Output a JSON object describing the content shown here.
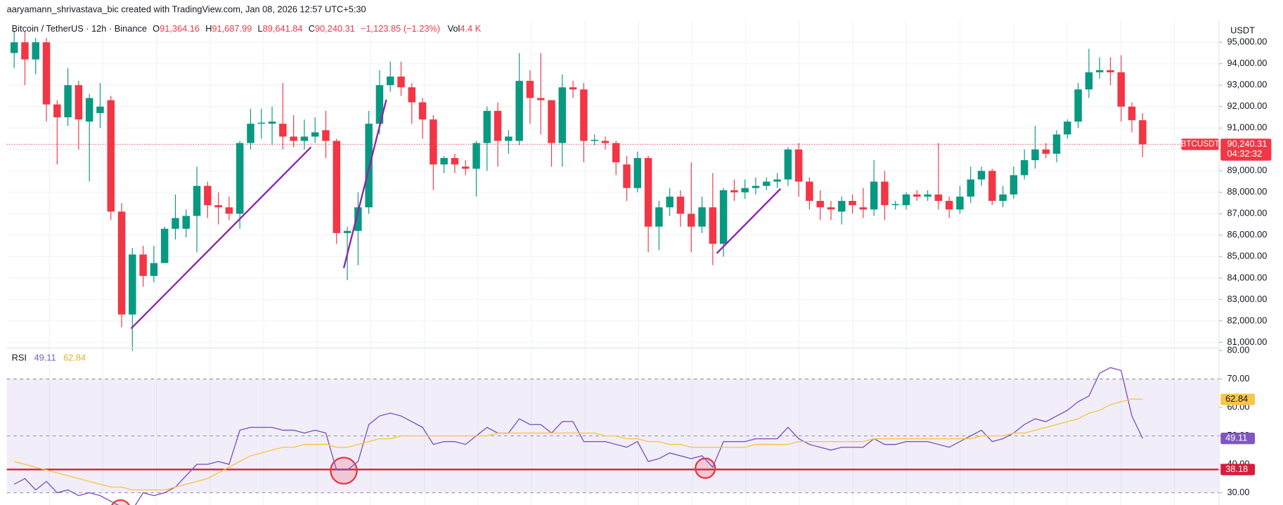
{
  "chart_data": [
    {
      "type": "candlestick",
      "watermark": "aaryamann_shrivastava_bic created with TradingView.com, Jan 08, 2026 12:57 UTC+5:30",
      "symbol": "Bitcoin / TetherUS · 12h · Binance",
      "ohlc_labels": [
        "O",
        "H",
        "L",
        "C"
      ],
      "ohlc_values": [
        "91,364.16",
        "91,687.99",
        "89,641.84",
        "90,240.31"
      ],
      "change": "−1,123.85 (−1.23%)",
      "volume_label": "Vol",
      "volume": "4.4 K",
      "y_label": "USDT",
      "ticker": "BTCUSDT",
      "countdown": "04:32:32",
      "last_price": {
        "value": 90240.31,
        "label": "90,240.31"
      },
      "up_color": "#089981",
      "down_color": "#f23645",
      "open": [
        94500,
        95000,
        94200,
        95000,
        92100,
        91500,
        93000,
        91300,
        91700,
        92300,
        87100,
        82300,
        85100,
        84100,
        84700,
        86300,
        86300,
        86900,
        88300,
        87400,
        87300,
        87000,
        90300,
        91200,
        91200,
        91200,
        90600,
        90400,
        90600,
        90900,
        90400,
        86100,
        86200,
        87300,
        91200,
        93000,
        93400,
        92900,
        92200,
        91400,
        89300,
        89600,
        89200,
        89100,
        90300,
        91800,
        90400,
        90400,
        93200,
        92400,
        92300,
        90300,
        92900,
        92800,
        90400,
        90400,
        90300,
        89300,
        88200,
        89600,
        86400,
        87300,
        87800,
        87000,
        86400,
        87300,
        85600,
        88100,
        88000,
        88200,
        88300,
        88500,
        88600,
        90000,
        88500,
        87600,
        87300,
        87100,
        87600,
        87300,
        87200,
        88500,
        87400,
        87400,
        87900,
        87800,
        87900,
        87600,
        87200,
        87800,
        88600,
        89000,
        87600,
        87900,
        88800,
        89500,
        90000,
        89800,
        90700,
        91300,
        92800,
        93600,
        93700,
        93600,
        92000,
        91364.16
      ],
      "high": [
        95500,
        95500,
        95200,
        95200,
        92300,
        93800,
        93200,
        92600,
        93100,
        92500,
        87500,
        85400,
        85500,
        85500,
        86400,
        87900,
        87200,
        89200,
        88500,
        88000,
        87800,
        90400,
        91900,
        91900,
        92000,
        93100,
        91600,
        91400,
        91500,
        91800,
        90500,
        86400,
        88000,
        91800,
        93700,
        94100,
        94100,
        93100,
        92400,
        91600,
        89700,
        89800,
        89500,
        90400,
        92000,
        92200,
        90900,
        94500,
        93700,
        94500,
        92300,
        93500,
        93200,
        93100,
        90700,
        90600,
        90400,
        89700,
        89900,
        89700,
        87600,
        88200,
        88100,
        89400,
        87800,
        88900,
        88200,
        88600,
        88600,
        88700,
        88700,
        88900,
        90100,
        90300,
        88700,
        88100,
        87600,
        87800,
        87900,
        88200,
        89500,
        89000,
        87600,
        88000,
        88100,
        88100,
        90300,
        87800,
        88300,
        89200,
        89200,
        89100,
        88300,
        89200,
        90000,
        91100,
        90300,
        90900,
        91400,
        93100,
        94700,
        94300,
        94300,
        94400,
        92200,
        91687.99
      ],
      "low": [
        93800,
        93000,
        93500,
        91300,
        89300,
        91100,
        90000,
        88500,
        91000,
        86700,
        81700,
        80600,
        83600,
        83800,
        84700,
        85800,
        85900,
        85200,
        86800,
        86500,
        86700,
        86300,
        90000,
        90500,
        90200,
        90000,
        90100,
        90000,
        90300,
        89600,
        85600,
        83900,
        84600,
        87000,
        90700,
        92700,
        92500,
        91200,
        90500,
        88100,
        88900,
        88900,
        88800,
        87800,
        89000,
        89200,
        89800,
        90200,
        91200,
        90700,
        89200,
        89200,
        92400,
        89400,
        90200,
        90000,
        88800,
        87600,
        88000,
        85200,
        85300,
        86900,
        86400,
        85200,
        86100,
        84600,
        85000,
        87600,
        87700,
        87900,
        88100,
        88200,
        88300,
        87800,
        87200,
        86700,
        86700,
        86500,
        87000,
        86800,
        86900,
        86700,
        87200,
        87200,
        87600,
        87600,
        87200,
        86800,
        87000,
        87500,
        88300,
        87400,
        87300,
        87700,
        88600,
        89100,
        89600,
        89400,
        90500,
        91000,
        92400,
        93300,
        93000,
        91300,
        90800,
        89641.84
      ],
      "close": [
        95000,
        94200,
        95000,
        92100,
        91500,
        93000,
        91400,
        92400,
        92000,
        87100,
        82300,
        85100,
        84100,
        84700,
        86300,
        86800,
        86900,
        88300,
        87400,
        87300,
        87000,
        90300,
        91200,
        91250,
        91300,
        90600,
        90400,
        90600,
        90800,
        90400,
        86100,
        86200,
        87300,
        91200,
        93000,
        93400,
        92900,
        92200,
        91400,
        89300,
        89600,
        89300,
        89100,
        90300,
        91800,
        90400,
        90600,
        93200,
        92400,
        92300,
        90300,
        92900,
        92800,
        90400,
        90450,
        90300,
        89400,
        88200,
        89600,
        86400,
        87300,
        87800,
        87000,
        86400,
        87300,
        85600,
        88100,
        88000,
        88200,
        88300,
        88500,
        88600,
        90000,
        88500,
        87600,
        87300,
        87200,
        87600,
        87400,
        87200,
        88500,
        87400,
        87450,
        87900,
        87800,
        87900,
        87600,
        87200,
        87800,
        88600,
        89000,
        87600,
        87900,
        88800,
        89500,
        90000,
        89800,
        90700,
        91300,
        92800,
        93600,
        93700,
        93600,
        92000,
        91364.16,
        90240.31
      ],
      "ylim": [
        80770,
        96020
      ],
      "yticks": [
        {
          "value": 81000,
          "label": "81,000.00"
        },
        {
          "value": 82000,
          "label": "82,000.00"
        },
        {
          "value": 83000,
          "label": "83,000.00"
        },
        {
          "value": 84000,
          "label": "84,000.00"
        },
        {
          "value": 85000,
          "label": "85,000.00"
        },
        {
          "value": 86000,
          "label": "86,000.00"
        },
        {
          "value": 87000,
          "label": "87,000.00"
        },
        {
          "value": 88000,
          "label": "88,000.00"
        },
        {
          "value": 89000,
          "label": "89,000.00"
        },
        {
          "value": 90000,
          "label": "90,000.00"
        },
        {
          "value": 91000,
          "label": "91,000.00"
        },
        {
          "value": 92000,
          "label": "92,000.00"
        },
        {
          "value": 93000,
          "label": "93,000.00"
        },
        {
          "value": 94000,
          "label": "94,000.00"
        },
        {
          "value": 95000,
          "label": "95,000.00"
        }
      ],
      "grid": true
    },
    {
      "type": "line",
      "title": "RSI",
      "series": [
        {
          "name": "RSI",
          "color": "#7e57c2",
          "values": [
            33,
            35,
            31,
            34,
            30,
            31,
            29,
            30,
            29,
            27,
            25,
            24,
            30,
            29,
            30,
            32,
            36,
            40,
            40,
            41,
            40,
            52,
            53,
            53,
            53,
            52,
            52,
            51,
            52,
            51,
            38,
            38,
            41,
            54,
            57,
            58,
            57,
            55,
            53,
            47,
            48,
            48,
            47,
            50,
            53,
            51,
            51,
            56,
            54,
            54,
            51,
            55,
            55,
            48,
            48,
            48,
            47,
            46,
            48,
            41,
            42,
            44,
            43,
            42,
            43,
            39,
            48,
            48,
            48,
            49,
            49,
            49,
            53,
            49,
            47,
            46,
            45,
            46,
            46,
            46,
            49,
            47,
            47,
            48,
            48,
            48,
            47,
            46,
            48,
            50,
            52,
            48,
            49,
            51,
            54,
            56,
            55,
            57,
            59,
            62,
            64,
            72,
            74,
            73,
            57,
            49.11
          ]
        },
        {
          "name": "RSI MA",
          "color": "#f7c548",
          "values": [
            41,
            40,
            39,
            38,
            37,
            36,
            35,
            34,
            33,
            32,
            32,
            31,
            31,
            31,
            31,
            32,
            33,
            34,
            35,
            37,
            39,
            41,
            43,
            44,
            45,
            46,
            46,
            47,
            47,
            47,
            46,
            46,
            47,
            48,
            49,
            49,
            50,
            50,
            50,
            50,
            50,
            50,
            50,
            50,
            50,
            51,
            51,
            51,
            51,
            51,
            51,
            51,
            51,
            51,
            51,
            50,
            50,
            49,
            49,
            48,
            48,
            47,
            47,
            46,
            46,
            46,
            46,
            46,
            46,
            47,
            47,
            47,
            47,
            48,
            48,
            48,
            48,
            48,
            48,
            48,
            49,
            49,
            49,
            49,
            49,
            49,
            49,
            49,
            49,
            49,
            50,
            50,
            50,
            51,
            51,
            52,
            53,
            54,
            55,
            56,
            58,
            59,
            61,
            62,
            63,
            62.84
          ]
        }
      ],
      "hline": {
        "value": 38.18,
        "color": "#d81b3c"
      },
      "levels": [
        70,
        50,
        30
      ],
      "ylim": [
        25.7,
        80
      ],
      "yticks": [
        {
          "value": 30,
          "label": "30.00"
        },
        {
          "value": 40,
          "label": "40.00"
        },
        {
          "value": 50,
          "label": "50.00"
        },
        {
          "value": 60,
          "label": "60.00"
        },
        {
          "value": 70,
          "label": "70.00"
        },
        {
          "value": 80,
          "label": "80.00"
        }
      ]
    }
  ]
}
